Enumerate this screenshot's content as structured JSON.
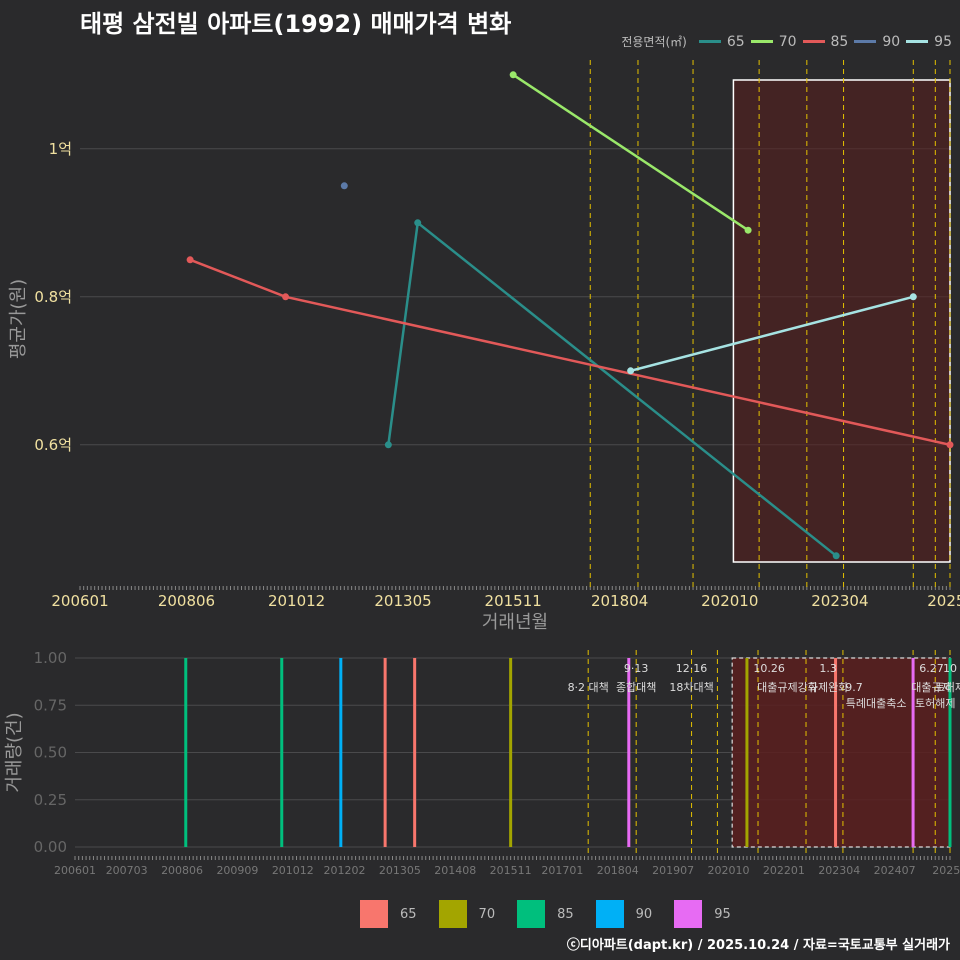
{
  "title": "태평 삼전빌 아파트(1992) 매매가격 변화",
  "footer": "ⓒ디아파트(dapt.kr) / 2025.10.24 / 자료=국토교통부 실거래가",
  "colors": {
    "background": "#2a2a2c",
    "grid": "#4a4a4c",
    "policy_line": "#e3c000",
    "highlight_fill": "#5a1e1e",
    "text_light": "#f0e0a0",
    "text_dim": "#888888"
  },
  "chart_data": [
    {
      "type": "line",
      "title": "태평 삼전빌 아파트(1992) 매매가격 변화",
      "xlabel": "거래년월",
      "ylabel": "평균가(원)",
      "legend_title": "전용면적(㎡)",
      "x_range": [
        "2006-01",
        "2025-10"
      ],
      "ylim": [
        0.42,
        1.12
      ],
      "y_ticks": [
        0.6,
        0.8,
        1.0
      ],
      "y_tick_labels": [
        "0.6억",
        "0.8억",
        "1억"
      ],
      "x_ticks": [
        "2006-01",
        "2008-06",
        "2010-12",
        "2013-05",
        "2015-11",
        "2018-04",
        "2020-10",
        "2023-04",
        "2025-09"
      ],
      "x_tick_labels": [
        "200601",
        "200806",
        "201012",
        "201305",
        "201511",
        "201804",
        "202010",
        "202304",
        "2025"
      ],
      "policy_lines": [
        "2017-08",
        "2018-09",
        "2019-12",
        "2021-06",
        "2022-07",
        "2023-05",
        "2024-12",
        "2025-06",
        "2025-10"
      ],
      "highlight_range": [
        "2020-11",
        "2025-10"
      ],
      "series": [
        {
          "name": "65",
          "color": "#2a8e8a",
          "points": [
            {
              "x": "2013-01",
              "y": 0.6
            },
            {
              "x": "2013-09",
              "y": 0.9
            },
            {
              "x": "2023-03",
              "y": 0.45
            }
          ]
        },
        {
          "name": "70",
          "color": "#9ae86a",
          "points": [
            {
              "x": "2015-11",
              "y": 1.1
            },
            {
              "x": "2021-03",
              "y": 0.89
            }
          ]
        },
        {
          "name": "85",
          "color": "#e25959",
          "points": [
            {
              "x": "2008-07",
              "y": 0.85
            },
            {
              "x": "2010-09",
              "y": 0.8
            },
            {
              "x": "2025-10",
              "y": 0.6
            }
          ]
        },
        {
          "name": "90",
          "color": "#5c7aa8",
          "points": [
            {
              "x": "2012-01",
              "y": 0.95
            }
          ]
        },
        {
          "name": "95",
          "color": "#a6e3e3",
          "points": [
            {
              "x": "2018-07",
              "y": 0.7
            },
            {
              "x": "2024-12",
              "y": 0.8
            }
          ]
        }
      ]
    },
    {
      "type": "bar",
      "xlabel": "",
      "ylabel": "거래량(건)",
      "ylim": [
        0,
        1
      ],
      "y_ticks": [
        0,
        0.25,
        0.5,
        0.75,
        1.0
      ],
      "y_tick_labels": [
        "0.00",
        "0.25",
        "0.50",
        "0.75",
        "1.00"
      ],
      "x_range": [
        "2006-01",
        "2025-10"
      ],
      "x_ticks": [
        "2006-01",
        "2007-03",
        "2008-06",
        "2009-09",
        "2010-12",
        "2012-02",
        "2013-05",
        "2014-08",
        "2015-11",
        "2017-01",
        "2018-04",
        "2019-07",
        "2020-10",
        "2022-01",
        "2023-04",
        "2024-07",
        "2025-09"
      ],
      "x_tick_labels": [
        "200601",
        "200703",
        "200806",
        "200909",
        "201012",
        "201202",
        "201305",
        "201408",
        "201511",
        "201701",
        "201804",
        "201907",
        "202010",
        "202201",
        "202304",
        "202407",
        "2025"
      ],
      "highlight_range": [
        "2020-11",
        "2025-10"
      ],
      "bars": [
        {
          "x": "2008-07",
          "value": 1,
          "series": "85"
        },
        {
          "x": "2010-09",
          "value": 1,
          "series": "85"
        },
        {
          "x": "2012-01",
          "value": 1,
          "series": "90"
        },
        {
          "x": "2013-01",
          "value": 1,
          "series": "65"
        },
        {
          "x": "2013-09",
          "value": 1,
          "series": "65"
        },
        {
          "x": "2015-11",
          "value": 1,
          "series": "70"
        },
        {
          "x": "2018-07",
          "value": 1,
          "series": "95"
        },
        {
          "x": "2021-03",
          "value": 1,
          "series": "70"
        },
        {
          "x": "2023-03",
          "value": 1,
          "series": "65"
        },
        {
          "x": "2024-12",
          "value": 1,
          "series": "95"
        },
        {
          "x": "2025-10",
          "value": 1,
          "series": "85"
        }
      ],
      "policy_lines": [
        "2017-08",
        "2018-09",
        "2019-12",
        "2020-07",
        "2021-06",
        "2022-07",
        "2023-05",
        "2024-12",
        "2025-06",
        "2025-10"
      ],
      "annotations": [
        {
          "x": "2017-08",
          "row": 1,
          "text": "8·2 대책"
        },
        {
          "x": "2018-09",
          "row": 0,
          "text": "9·13"
        },
        {
          "x": "2018-09",
          "row": 1,
          "text": "종합대책"
        },
        {
          "x": "2019-12",
          "row": 0,
          "text": "12·16"
        },
        {
          "x": "2019-12",
          "row": 1,
          "text": "18차대책"
        },
        {
          "x": "2021-09",
          "row": 0,
          "text": "10.26"
        },
        {
          "x": "2022-02",
          "row": 1,
          "text": "대출규제강화"
        },
        {
          "x": "2023-01",
          "row": 0,
          "text": "1.3"
        },
        {
          "x": "2023-01",
          "row": 1,
          "text": "규제완화"
        },
        {
          "x": "2023-08",
          "row": 1,
          "text": "9.7"
        },
        {
          "x": "2024-02",
          "row": 2,
          "text": "특례대출축소"
        },
        {
          "x": "2025-05",
          "row": 0,
          "text": "6.27"
        },
        {
          "x": "2025-05",
          "row": 1,
          "text": "대출규제"
        },
        {
          "x": "2025-10",
          "row": 0,
          "text": "10"
        },
        {
          "x": "2025-10",
          "row": 1,
          "text": "토허제"
        },
        {
          "x": "2025-06",
          "row": 2,
          "text": "토허해제"
        }
      ]
    }
  ],
  "bar_legend": [
    {
      "label": "65",
      "color": "#f8766d"
    },
    {
      "label": "70",
      "color": "#a3a500"
    },
    {
      "label": "85",
      "color": "#00bf7d"
    },
    {
      "label": "90",
      "color": "#00b0f6"
    },
    {
      "label": "95",
      "color": "#e76bf3"
    }
  ]
}
